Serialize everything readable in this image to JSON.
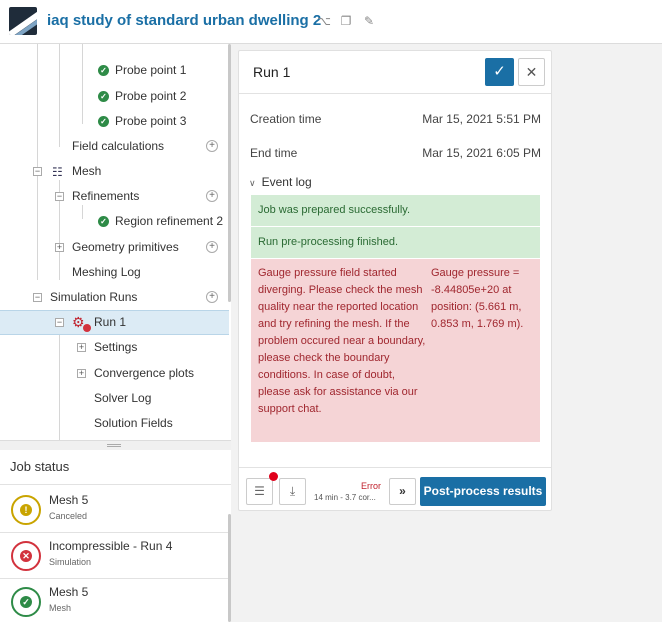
{
  "header": {
    "title": "iaq study of standard urban dwelling 2",
    "icons": [
      "share-icon",
      "copy-icon",
      "edit-icon"
    ]
  },
  "tree": {
    "items": [
      {
        "label": "Probe point 1",
        "state": "done"
      },
      {
        "label": "Probe point 2",
        "state": "done"
      },
      {
        "label": "Probe point 3",
        "state": "done"
      },
      {
        "label": "Field calculations"
      },
      {
        "label": "Mesh"
      },
      {
        "label": "Refinements"
      },
      {
        "label": "Region refinement 2",
        "state": "done"
      },
      {
        "label": "Geometry primitives"
      },
      {
        "label": "Meshing Log"
      },
      {
        "label": "Simulation Runs"
      },
      {
        "label": "Run 1",
        "selected": true
      },
      {
        "label": "Settings"
      },
      {
        "label": "Convergence plots"
      },
      {
        "label": "Solver Log"
      },
      {
        "label": "Solution Fields"
      }
    ]
  },
  "job_status": {
    "title": "Job status",
    "items": [
      {
        "name": "Mesh 5",
        "sub": "Canceled",
        "status": "warning",
        "color": "#c9a400"
      },
      {
        "name": "Incompressible - Run 4",
        "sub": "Simulation",
        "status": "error",
        "color": "#d2323d"
      },
      {
        "name": "Mesh 5",
        "sub": "Mesh",
        "status": "success",
        "color": "#2e8b47"
      }
    ]
  },
  "run": {
    "title": "Run 1",
    "creation_label": "Creation time",
    "creation_value": "Mar 15, 2021 5:51 PM",
    "end_label": "End time",
    "end_value": "Mar 15, 2021 6:05 PM",
    "event_log_label": "Event log",
    "events": {
      "prepared": "Job was prepared successfully.",
      "preprocessing": "Run pre-processing finished.",
      "error_message": "Gauge pressure field started diverging. Please check the mesh quality near the reported location and try refining the mesh. If the problem occured near a boundary, please check the boundary conditions. In case of doubt, please ask for assistance via our support chat.",
      "error_detail": "Gauge pressure = -8.44805e+20 at position: (5.661 m, 0.853 m, 1.769 m)."
    },
    "footer": {
      "status": "Error",
      "duration": "14 min - 3.7 cor...",
      "post_process_label": "Post-process results"
    }
  },
  "colors": {
    "accent": "#1a6fa5",
    "success_bg": "#d3ecd5",
    "error_bg": "#f5d4d6"
  }
}
